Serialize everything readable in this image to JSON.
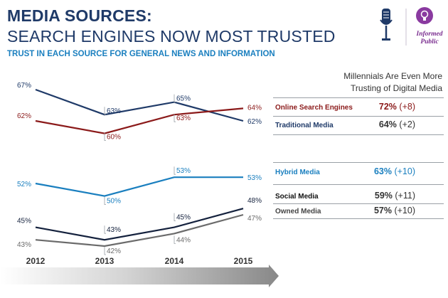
{
  "header": {
    "title_line1": "MEDIA SOURCES:",
    "title_line2": "SEARCH ENGINES NOW MOST TRUSTED",
    "subtitle": "TRUST IN EACH SOURCE FOR GENERAL NEWS AND INFORMATION"
  },
  "logo": {
    "text_line1": "Informed",
    "text_line2": "Public"
  },
  "millennials": {
    "heading_line1": "Millennials Are Even More",
    "heading_line2": "Trusting of Digital Media",
    "rows": [
      {
        "label": "Online Search Engines",
        "value": "72%",
        "change": "(+8)",
        "color": "#8b1a1a",
        "value_color": "#8b1a1a"
      },
      {
        "label": "Traditional Media",
        "value": "64%",
        "change": "(+2)",
        "color": "#1f3a68",
        "value_color": "#333333"
      },
      {
        "label": "Hybrid Media",
        "value": "63%",
        "change": "(+10)",
        "color": "#1a7fbf",
        "value_color": "#1a7fbf"
      },
      {
        "label": "Social Media",
        "value": "59%",
        "change": "(+11)",
        "color": "#111111",
        "value_color": "#333333"
      },
      {
        "label": "Owned Media",
        "value": "57%",
        "change": "(+10)",
        "color": "#444444",
        "value_color": "#333333"
      }
    ]
  },
  "chart_data": {
    "type": "line",
    "title": "Trust in each source for general news and information",
    "categories": [
      "2012",
      "2013",
      "2014",
      "2015"
    ],
    "series": [
      {
        "name": "Traditional Media",
        "values": [
          67,
          63,
          65,
          62
        ],
        "labels": [
          "67%",
          "63%",
          "65%",
          "62%"
        ],
        "color": "#1f3a68"
      },
      {
        "name": "Online Search Engines",
        "values": [
          62,
          60,
          63,
          64
        ],
        "labels": [
          "62%",
          "60%",
          "63%",
          "64%"
        ],
        "color": "#8b1a1a"
      },
      {
        "name": "Hybrid Media",
        "values": [
          52,
          50,
          53,
          53
        ],
        "labels": [
          "52%",
          "50%",
          "53%",
          "53%"
        ],
        "color": "#1a7fbf"
      },
      {
        "name": "Social Media",
        "values": [
          45,
          43,
          45,
          48
        ],
        "labels": [
          "45%",
          "43%",
          "45%",
          "48%"
        ],
        "color": "#14213d"
      },
      {
        "name": "Owned Media",
        "values": [
          43,
          42,
          44,
          47
        ],
        "labels": [
          "43%",
          "42%",
          "44%",
          "47%"
        ],
        "color": "#6b6b6b"
      }
    ],
    "xlabel": "",
    "ylabel": ""
  }
}
